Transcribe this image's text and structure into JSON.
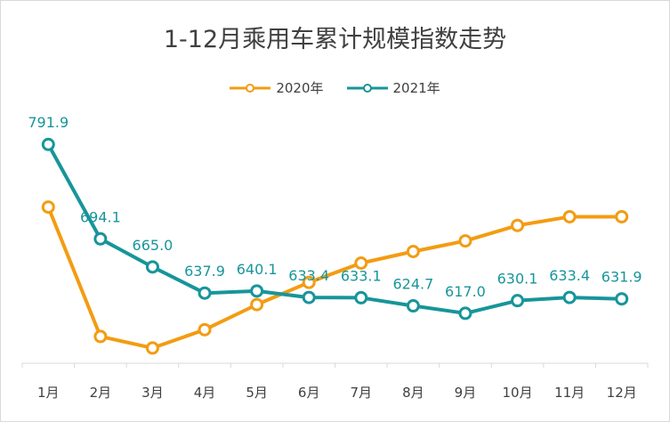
{
  "chart_data": {
    "type": "line",
    "title": "1-12月乘用车累计规模指数走势",
    "xlabel": "",
    "ylabel": "",
    "categories": [
      "1月",
      "2月",
      "3月",
      "4月",
      "5月",
      "6月",
      "7月",
      "8月",
      "9月",
      "10月",
      "11月",
      "12月"
    ],
    "series": [
      {
        "name": "2020年",
        "color": "#f39c12",
        "values": [
          727,
          593,
          581,
          600,
          626,
          649,
          669,
          681,
          692,
          708,
          717,
          717
        ],
        "show_labels": false
      },
      {
        "name": "2021年",
        "color": "#17959a",
        "values": [
          791.9,
          694.1,
          665.0,
          637.9,
          640.1,
          633.4,
          633.1,
          624.7,
          617.0,
          630.1,
          633.4,
          631.9
        ],
        "labels": [
          "791.9",
          "694.1",
          "665.0",
          "637.9",
          "640.1",
          "633.4",
          "633.1",
          "624.7",
          "617.0",
          "630.1",
          "633.4",
          "631.9"
        ],
        "show_labels": true
      }
    ],
    "ylim": [
      0,
      850
    ],
    "grid": false,
    "legend_position": "top"
  }
}
